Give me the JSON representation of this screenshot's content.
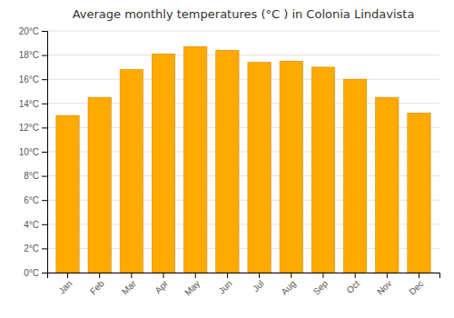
{
  "chart_data": {
    "type": "bar",
    "title": "Average monthly temperatures (°C ) in Colonia Lindavista",
    "categories": [
      "Jan",
      "Feb",
      "Mar",
      "Apr",
      "May",
      "Jun",
      "Jul",
      "Aug",
      "Sep",
      "Oct",
      "Nov",
      "Dec"
    ],
    "values": [
      13.0,
      14.5,
      16.8,
      18.1,
      18.7,
      18.4,
      17.4,
      17.5,
      17.0,
      16.0,
      14.5,
      13.2
    ],
    "color": "#FFAA00",
    "ylim": [
      0,
      20
    ],
    "yticks": [
      {
        "value": 0,
        "label": "0°C"
      },
      {
        "value": 2,
        "label": "2°C"
      },
      {
        "value": 4,
        "label": "4°C"
      },
      {
        "value": 6,
        "label": "6°C"
      },
      {
        "value": 8,
        "label": "8°C"
      },
      {
        "value": 10,
        "label": "10°C"
      },
      {
        "value": 12,
        "label": "12°C"
      },
      {
        "value": 14,
        "label": "14°C"
      },
      {
        "value": 16,
        "label": "16°C"
      },
      {
        "value": 18,
        "label": "18°C"
      },
      {
        "value": 20,
        "label": "20°C"
      }
    ],
    "grid": true
  }
}
